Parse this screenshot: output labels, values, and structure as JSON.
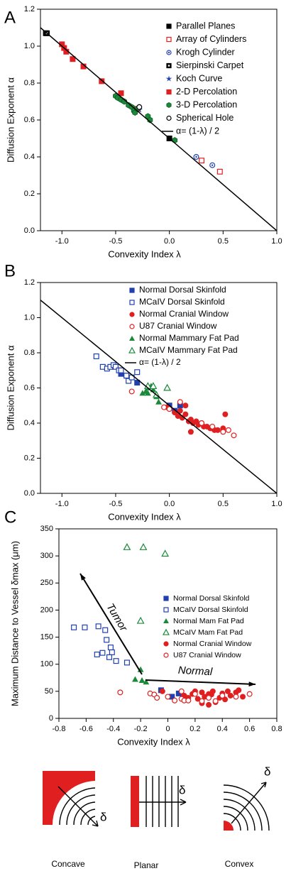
{
  "chart_data": [
    {
      "type": "scatter",
      "panel": "A",
      "x_label": "Convexity Index λ",
      "y_label": "Diffusion Exponent α",
      "xlim": [
        -1.2,
        1.0
      ],
      "ylim": [
        0,
        1.2
      ],
      "xticks": [
        {
          "value": -1,
          "label": "-1.0"
        },
        -0.5,
        {
          "value": 0,
          "label": "0.0"
        },
        0.5,
        {
          "value": 1,
          "label": "1.0"
        }
      ],
      "yticks": [
        {
          "value": 0,
          "label": "0.0"
        },
        0.2,
        0.4,
        0.6,
        0.8,
        {
          "value": 1,
          "label": "1.0"
        },
        1.2
      ],
      "series": [
        {
          "name": "Parallel Planes",
          "color": "#000000",
          "marker": "square",
          "x": [
            -1.15,
            0.0
          ],
          "values": [
            1.07,
            0.5
          ]
        },
        {
          "name": "Array of Cylinders",
          "color": "#e02020",
          "marker": "square-open",
          "x": [
            0.3,
            0.47
          ],
          "values": [
            0.38,
            0.32
          ]
        },
        {
          "name": "Krogh Cylinder",
          "color": "#2040b0",
          "marker": "circle-dot",
          "x": [
            0.25,
            0.4
          ],
          "values": [
            0.4,
            0.355
          ]
        },
        {
          "name": "Sierpinski Carpet",
          "color": "#000000",
          "marker": "square-dot",
          "x": [
            -1.14
          ],
          "values": [
            1.07
          ]
        },
        {
          "name": "Koch Curve",
          "color": "#2040b0",
          "marker": "star",
          "x": [
            -0.28
          ],
          "values": [
            0.655
          ]
        },
        {
          "name": "2-D Percolation",
          "color": "#e02020",
          "marker": "square",
          "x": [
            -1.0,
            -0.98,
            -0.96,
            -0.9,
            -0.8,
            -0.63,
            -0.45,
            -0.3
          ],
          "values": [
            1.01,
            0.99,
            0.97,
            0.93,
            0.89,
            0.81,
            0.745,
            0.66
          ]
        },
        {
          "name": "3-D Percolation",
          "color": "#1a8a3a",
          "marker": "hexagon",
          "x": [
            -0.5,
            -0.48,
            -0.45,
            -0.42,
            -0.38,
            -0.35,
            -0.33,
            -0.32,
            -0.3,
            -0.2,
            -0.18,
            0.05
          ],
          "values": [
            0.73,
            0.72,
            0.71,
            0.7,
            0.68,
            0.67,
            0.65,
            0.64,
            0.66,
            0.62,
            0.6,
            0.49
          ]
        },
        {
          "name": "Spherical Hole",
          "color": "#000000",
          "marker": "circle-open",
          "x": [
            -0.28
          ],
          "values": [
            0.67
          ]
        },
        {
          "name": "α= (1-λ) / 2",
          "color": "#000000",
          "marker": "line",
          "x": [
            -1.2,
            1.0
          ],
          "values": [
            1.1,
            0
          ]
        }
      ]
    },
    {
      "type": "scatter",
      "panel": "B",
      "x_label": "Convexity Index λ",
      "y_label": "Diffusion Exponent α",
      "xlim": [
        -1.2,
        1.0
      ],
      "ylim": [
        0,
        1.2
      ],
      "xticks": [
        {
          "value": -1,
          "label": "-1.0"
        },
        -0.5,
        {
          "value": 0,
          "label": "0.0"
        },
        0.5,
        {
          "value": 1,
          "label": "1.0"
        }
      ],
      "yticks": [
        {
          "value": 0,
          "label": "0.0"
        },
        0.2,
        0.4,
        0.6,
        0.8,
        {
          "value": 1,
          "label": "1.0"
        },
        1.2
      ],
      "series": [
        {
          "name": "Normal Dorsal Skinfold",
          "color": "#2040b0",
          "marker": "square",
          "x": [
            -0.45,
            -0.4,
            -0.3,
            0.0,
            0.05,
            0.1
          ],
          "values": [
            0.68,
            0.67,
            0.63,
            0.5,
            0.47,
            0.5
          ]
        },
        {
          "name": "MCaIV Dorsal Skinfold",
          "color": "#2040b0",
          "marker": "square-open",
          "x": [
            -0.68,
            -0.62,
            -0.58,
            -0.55,
            -0.52,
            -0.5,
            -0.47,
            -0.45,
            -0.4,
            -0.38,
            -0.35,
            -0.3
          ],
          "values": [
            0.78,
            0.72,
            0.71,
            0.72,
            0.73,
            0.72,
            0.7,
            0.7,
            0.67,
            0.64,
            0.66,
            0.69
          ]
        },
        {
          "name": "Normal Cranial Window",
          "color": "#e02020",
          "marker": "circle",
          "x": [
            -0.02,
            0.05,
            0.08,
            0.12,
            0.15,
            0.18,
            0.2,
            0.22,
            0.25,
            0.27,
            0.3,
            0.32,
            0.35,
            0.38,
            0.4,
            0.42,
            0.45,
            0.5,
            0.52,
            0.2,
            0.1,
            0.15
          ],
          "values": [
            0.49,
            0.46,
            0.44,
            0.43,
            0.45,
            0.41,
            0.42,
            0.4,
            0.41,
            0.39,
            0.4,
            0.38,
            0.38,
            0.37,
            0.37,
            0.36,
            0.36,
            0.37,
            0.45,
            0.35,
            0.47,
            0.5
          ]
        },
        {
          "name": "U87 Cranial Window",
          "color": "#e02020",
          "marker": "circle-open",
          "x": [
            -0.35,
            -0.05,
            0.0,
            0.1,
            0.3,
            0.4,
            0.5,
            0.55,
            0.6
          ],
          "values": [
            0.58,
            0.49,
            0.48,
            0.52,
            0.4,
            0.38,
            0.35,
            0.36,
            0.33
          ]
        },
        {
          "name": "Normal Mammary Fat Pad",
          "color": "#1a8a3a",
          "marker": "triangle",
          "x": [
            -0.25,
            -0.22,
            -0.2,
            -0.17,
            -0.15,
            -0.12,
            -0.1,
            -0.2
          ],
          "values": [
            0.57,
            0.58,
            0.6,
            0.61,
            0.59,
            0.55,
            0.52,
            0.57
          ]
        },
        {
          "name": "MCaIV Mammary Fat Pad",
          "color": "#1a8a3a",
          "marker": "triangle-open",
          "x": [
            -0.2,
            -0.15,
            -0.02,
            -0.12
          ],
          "values": [
            0.61,
            0.61,
            0.6,
            0.56
          ]
        },
        {
          "name": "α= (1-λ) / 2",
          "color": "#000000",
          "marker": "line",
          "x": [
            -1.2,
            1.0
          ],
          "values": [
            1.1,
            0
          ]
        }
      ]
    },
    {
      "type": "scatter",
      "panel": "C",
      "x_label": "Convexity Index λ",
      "y_label": "Maximum Distance to Vessel δmax (μm)",
      "xlim": [
        -0.8,
        0.8
      ],
      "ylim": [
        0,
        350
      ],
      "xticks": [
        -0.8,
        -0.6,
        -0.4,
        -0.2,
        0,
        0.2,
        0.4,
        0.6,
        0.8
      ],
      "yticks": [
        0,
        50,
        100,
        150,
        200,
        250,
        300,
        350
      ],
      "annotations": [
        "Tumor",
        "Normal"
      ],
      "series": [
        {
          "name": "Normal Dorsal Skinfold",
          "color": "#2040b0",
          "marker": "square",
          "x": [
            -0.05,
            0.03,
            0.08
          ],
          "values": [
            52,
            40,
            46
          ]
        },
        {
          "name": "MCaIV Dorsal Skinfold",
          "color": "#2040b0",
          "marker": "square-open",
          "x": [
            -0.69,
            -0.61,
            -0.51,
            -0.46,
            -0.45,
            -0.42,
            -0.41,
            -0.43,
            -0.48,
            -0.52,
            -0.38,
            -0.3
          ],
          "values": [
            168,
            168,
            170,
            163,
            145,
            131,
            122,
            113,
            121,
            118,
            106,
            103
          ]
        },
        {
          "name": "Normal Mam Fat Pad",
          "color": "#1a8a3a",
          "marker": "triangle",
          "x": [
            -0.2,
            -0.24,
            -0.19,
            -0.16
          ],
          "values": [
            90,
            72,
            70,
            67
          ]
        },
        {
          "name": "MCaIV Mam Fat Pad",
          "color": "#1a8a3a",
          "marker": "triangle-open",
          "x": [
            -0.3,
            -0.18,
            -0.02,
            -0.2
          ],
          "values": [
            316,
            316,
            304,
            180
          ]
        },
        {
          "name": "Normal Cranial Window",
          "color": "#e02020",
          "marker": "circle",
          "x": [
            -0.04,
            0.12,
            0.15,
            0.18,
            0.2,
            0.22,
            0.25,
            0.27,
            0.3,
            0.32,
            0.33,
            0.35,
            0.38,
            0.4,
            0.42,
            0.44,
            0.46,
            0.5,
            0.52,
            0.3,
            0.25,
            0.55
          ],
          "values": [
            50,
            42,
            38,
            45,
            50,
            36,
            48,
            40,
            25,
            44,
            50,
            30,
            38,
            46,
            35,
            50,
            42,
            48,
            52,
            45,
            28,
            40
          ]
        },
        {
          "name": "U87 Cranial Window",
          "color": "#e02020",
          "marker": "circle-open",
          "x": [
            -0.35,
            -0.13,
            -0.1,
            -0.08,
            0.0,
            0.05,
            0.1,
            0.1,
            0.12,
            0.15,
            0.2,
            0.25,
            0.3,
            0.35,
            0.4,
            0.5,
            0.6
          ],
          "values": [
            48,
            46,
            44,
            38,
            40,
            33,
            36,
            50,
            33,
            33,
            45,
            32,
            38,
            32,
            42,
            40,
            45
          ]
        }
      ]
    }
  ],
  "diagram": {
    "labels": [
      "Concave",
      "Planar",
      "Convex"
    ],
    "symbol": "δ"
  }
}
